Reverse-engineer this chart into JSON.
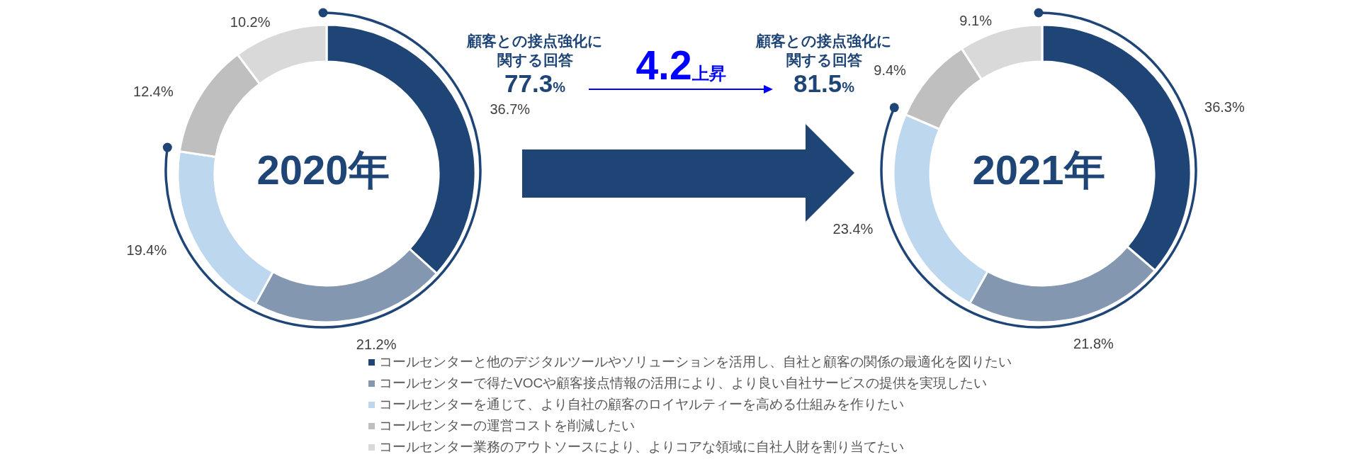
{
  "chart_data": [
    {
      "type": "donut",
      "title": "2020年",
      "categories": [
        "コールセンターと他のデジタルツールやソリューションを活用し、自社と顧客の関係の最適化を図りたい",
        "コールセンターで得たVOCや顧客接点情報の活用により、より良い自社サービスの提供を実現したい",
        "コールセンターを通じて、より自社の顧客のロイヤルティーを高める仕組みを作りたい",
        "コールセンターの運営コストを削減したい",
        "コールセンター業務のアウトソースにより、よりコアな領域に自社人財を割り当てたい"
      ],
      "values": [
        36.7,
        21.2,
        19.4,
        12.4,
        10.2
      ],
      "colors": [
        "#1f4577",
        "#8497b0",
        "#bdd7ee",
        "#bfbfbf",
        "#d9d9d9"
      ],
      "value_labels": [
        "36.7%",
        "21.2%",
        "19.4%",
        "12.4%",
        "10.2%"
      ],
      "legend": "bottom",
      "annotations": [
        "顧客との接点強化に関する回答",
        "77.3%"
      ]
    },
    {
      "type": "donut",
      "title": "2021年",
      "categories": [
        null,
        null,
        null,
        null,
        null
      ],
      "values": [
        36.3,
        21.8,
        23.4,
        9.4,
        9.1
      ],
      "colors": [
        "#1f4577",
        "#8497b0",
        "#bdd7ee",
        "#bfbfbf",
        "#d9d9d9"
      ],
      "value_labels": [
        "36.3%",
        "21.8%",
        "23.4%",
        "9.4%",
        "9.1%"
      ],
      "annotations": [
        "顧客との接点強化に関する回答",
        "81.5%",
        "4.2上昇"
      ]
    }
  ]
}
